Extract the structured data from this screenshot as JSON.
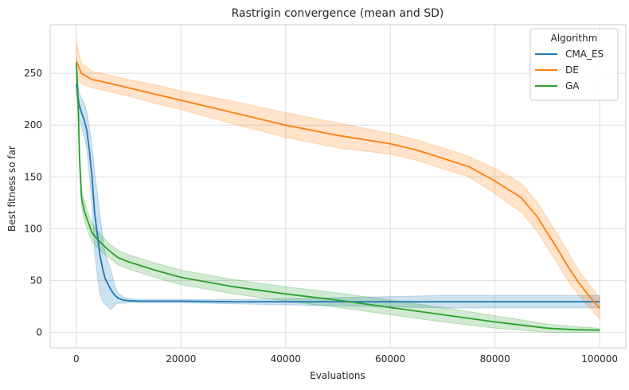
{
  "chart_data": {
    "type": "line",
    "title": "Rastrigin convergence (mean and SD)",
    "xlabel": "Evaluations",
    "ylabel": "Best fitness so far",
    "xlim": [
      -5000,
      105000
    ],
    "ylim": [
      -15,
      297
    ],
    "xticks": [
      0,
      20000,
      40000,
      60000,
      80000,
      100000
    ],
    "yticks": [
      0,
      50,
      100,
      150,
      200,
      250
    ],
    "grid": true,
    "legend": {
      "title": "Algorithm",
      "placement": "top-right"
    },
    "series": [
      {
        "name": "CMA_ES",
        "color": "#1f77b4",
        "x": [
          0,
          500,
          1000,
          1500,
          2000,
          2500,
          3000,
          3500,
          4000,
          4500,
          5000,
          5500,
          6000,
          6500,
          7000,
          7500,
          8000,
          9000,
          10000,
          12000,
          20000,
          30000,
          40000,
          50000,
          60000,
          70000,
          80000,
          90000,
          100000
        ],
        "mean": [
          240,
          220,
          212,
          205,
          195,
          175,
          150,
          115,
          95,
          75,
          62,
          52,
          47,
          42,
          38,
          35,
          33,
          31,
          30.5,
          30,
          30,
          29.5,
          29.5,
          29.5,
          29.5,
          29.5,
          29.5,
          29.5,
          29.5
        ],
        "sd": [
          10,
          12,
          14,
          16,
          18,
          22,
          30,
          38,
          40,
          38,
          32,
          25,
          22,
          20,
          14,
          8,
          5,
          3,
          2,
          1.5,
          1.5,
          2,
          3,
          4,
          5,
          6,
          6,
          6,
          6
        ]
      },
      {
        "name": "DE",
        "color": "#ff7f0e",
        "x": [
          0,
          300,
          1000,
          2000,
          3000,
          5000,
          10000,
          15000,
          20000,
          25000,
          30000,
          40000,
          50000,
          60000,
          65000,
          70000,
          75000,
          80000,
          85000,
          88000,
          90000,
          92000,
          94000,
          96000,
          98000,
          100000
        ],
        "mean": [
          262,
          258,
          250,
          247,
          244,
          242,
          236,
          230,
          224,
          218,
          212,
          200,
          190,
          182,
          176,
          168,
          160,
          146,
          130,
          112,
          96,
          80,
          63,
          48,
          35,
          23
        ],
        "sd": [
          18,
          14,
          10,
          9,
          8,
          8,
          8,
          9,
          9,
          10,
          11,
          12,
          12,
          10,
          10,
          10,
          10,
          12,
          14,
          14,
          14,
          14,
          14,
          12,
          11,
          10
        ]
      },
      {
        "name": "GA",
        "color": "#2ca02c",
        "x": [
          0,
          300,
          600,
          1000,
          1500,
          2000,
          2500,
          3000,
          4000,
          5000,
          6000,
          8000,
          10000,
          15000,
          20000,
          30000,
          40000,
          50000,
          60000,
          70000,
          80000,
          90000,
          95000,
          100000
        ],
        "mean": [
          260,
          230,
          170,
          130,
          118,
          110,
          103,
          96,
          90,
          85,
          80,
          72,
          68,
          60,
          53,
          44,
          37,
          31,
          24,
          17,
          10,
          4,
          2.5,
          2
        ],
        "sd": [
          5,
          10,
          10,
          9,
          9,
          9,
          9,
          9,
          8,
          8,
          7,
          7,
          7,
          7,
          7,
          7,
          7,
          7,
          7,
          7,
          6,
          4,
          3,
          2
        ]
      }
    ]
  }
}
